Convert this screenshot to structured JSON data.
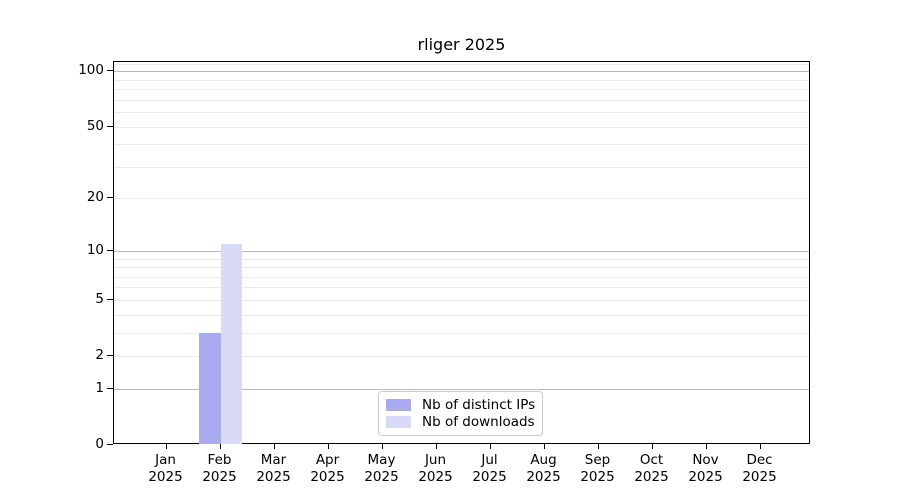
{
  "chart_data": {
    "type": "bar",
    "title": "rliger 2025",
    "categories": [
      "Jan 2025",
      "Feb 2025",
      "Mar 2025",
      "Apr 2025",
      "May 2025",
      "Jun 2025",
      "Jul 2025",
      "Aug 2025",
      "Sep 2025",
      "Oct 2025",
      "Nov 2025",
      "Dec 2025"
    ],
    "series": [
      {
        "name": "Nb of distinct IPs",
        "color": "#aaaaf0",
        "values": [
          0,
          3,
          0,
          0,
          0,
          0,
          0,
          0,
          0,
          0,
          0,
          0
        ]
      },
      {
        "name": "Nb of downloads",
        "color": "#d9d9f8",
        "values": [
          0,
          11,
          0,
          0,
          0,
          0,
          0,
          0,
          0,
          0,
          0,
          0
        ]
      }
    ],
    "xlabel": "",
    "ylabel": "",
    "y_axis": {
      "scale": "log10(1+v)",
      "tick_values": [
        100,
        50,
        20,
        10,
        5,
        2,
        1,
        0
      ],
      "tick_labels": [
        "100",
        "50",
        "20",
        "10",
        "5",
        "2",
        "1",
        "0"
      ],
      "major_grid_values": [
        1,
        10,
        100
      ],
      "minor_grid_values": [
        2,
        3,
        4,
        5,
        6,
        7,
        8,
        9,
        20,
        30,
        40,
        50,
        60,
        70,
        80,
        90,
        110
      ],
      "ylim": [
        0,
        112
      ]
    },
    "grid": "horizontal",
    "legend": {
      "position": "lower center",
      "entries": [
        "Nb of distinct IPs",
        "Nb of downloads"
      ]
    },
    "colors": {
      "background": "#ffffff",
      "axis_frame": "#000000",
      "grid_minor": "#ececec",
      "grid_major": "#b9b9b9",
      "legend_border": "#cccccc",
      "text": "#000000"
    }
  }
}
